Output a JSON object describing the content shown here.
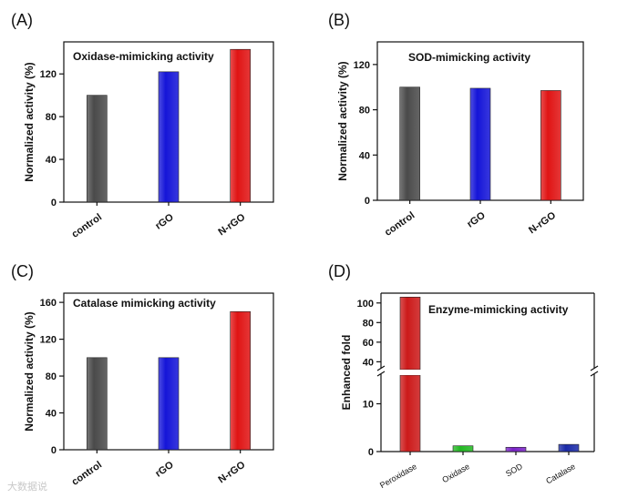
{
  "colors": {
    "control": "#4a4a4a",
    "rGO": "#1515d8",
    "N-rGO": "#e01414",
    "Peroxidase": "#cc1a1a",
    "Oxidase": "#22b822",
    "SOD": "#7a22c8",
    "Catalase": "#1a2aa8"
  },
  "watermark": "大数据说",
  "chart_data": [
    {
      "panel": "(A)",
      "type": "bar",
      "title": "Oxidase-mimicking activity",
      "ylabel": "Normalized activity (%)",
      "categories": [
        "control",
        "rGO",
        "N-rGO"
      ],
      "values": [
        100,
        122,
        143
      ],
      "yticks": [
        0,
        40,
        80,
        120
      ],
      "ylim": [
        0,
        150
      ]
    },
    {
      "panel": "(B)",
      "type": "bar",
      "title": "SOD-mimicking activity",
      "ylabel": "Normalized activity (%)",
      "categories": [
        "control",
        "rGO",
        "N-rGO"
      ],
      "values": [
        100,
        99,
        97
      ],
      "yticks": [
        0,
        40,
        80,
        120
      ],
      "ylim": [
        0,
        140
      ]
    },
    {
      "panel": "(C)",
      "type": "bar",
      "title": "Catalase mimicking activity",
      "ylabel": "Normalized activity (%)",
      "categories": [
        "control",
        "rGO",
        "N-rGO"
      ],
      "values": [
        100,
        100,
        150
      ],
      "yticks": [
        0,
        40,
        80,
        120,
        160
      ],
      "ylim": [
        0,
        170
      ]
    },
    {
      "panel": "(D)",
      "type": "bar",
      "title": "Enzyme-mimicking activity",
      "ylabel": "Enhanced fold",
      "categories": [
        "Peroxidase",
        "Oxidase",
        "SOD",
        "Catalase"
      ],
      "values": [
        106,
        1.2,
        0.9,
        1.5
      ],
      "yticks_lower": [
        0,
        10
      ],
      "yticks_upper": [
        40,
        60,
        80,
        100
      ],
      "ylim_lower": [
        0,
        16
      ],
      "ylim_upper": [
        32,
        110
      ],
      "axis_break": true
    }
  ]
}
